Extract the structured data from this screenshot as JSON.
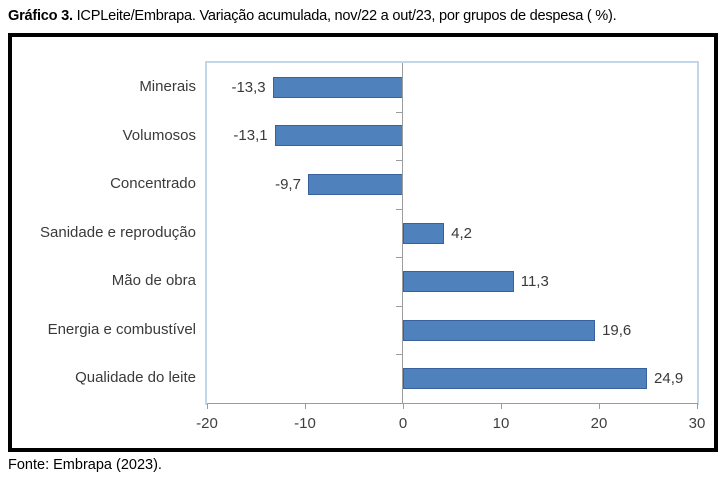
{
  "title": {
    "prefix": "Gráfico 3.",
    "text": " ICPLeite/Embrapa. Variação acumulada, nov/22 a out/23, por grupos de despesa ( %)."
  },
  "source": "Fonte: Embrapa (2023).",
  "colors": {
    "bar_fill": "#4f81bd",
    "bar_border": "#39629c",
    "plot_border": "#c4d6ea",
    "axis_line": "#9c9c9c",
    "text": "#3a3a3a"
  },
  "chart_data": {
    "type": "bar",
    "orientation": "horizontal",
    "title": "Gráfico 3. ICPLeite/Embrapa. Variação acumulada, nov/22 a out/23, por grupos de despesa ( %).",
    "categories": [
      "Minerais",
      "Volumosos",
      "Concentrado",
      "Sanidade e reprodução",
      "Mão de obra",
      "Energia e combustível",
      "Qualidade do leite"
    ],
    "values": [
      -13.3,
      -13.1,
      -9.7,
      4.2,
      11.3,
      19.6,
      24.9
    ],
    "value_labels": [
      "-13,3",
      "-13,1",
      "-9,7",
      "4,2",
      "11,3",
      "19,6",
      "24,9"
    ],
    "xlabel": "",
    "ylabel": "",
    "xlim": [
      -20,
      30
    ],
    "xticks": [
      -20,
      -10,
      0,
      10,
      20,
      30
    ],
    "xtick_labels": [
      "-20",
      "-10",
      "0",
      "10",
      "20",
      "30"
    ],
    "grid": false,
    "legend": null,
    "data_labels": true
  }
}
